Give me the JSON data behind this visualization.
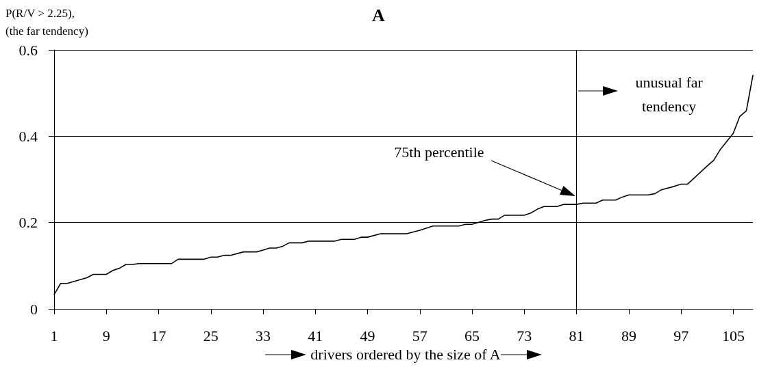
{
  "chart_data": {
    "type": "line",
    "title": "A",
    "xlabel": "drivers ordered by the size of A",
    "ylabel": "P(R/V > 2.25),\n(the far tendency)",
    "xlim": [
      1,
      108
    ],
    "xticks": [
      1,
      9,
      17,
      25,
      33,
      41,
      49,
      57,
      65,
      73,
      81,
      89,
      97,
      105
    ],
    "ylim": [
      0,
      0.6
    ],
    "yticks": [
      0,
      0.2,
      0.4,
      0.6
    ],
    "grid": "y",
    "marker": "none",
    "line_style": "solid",
    "series": [
      {
        "color": "#000000",
        "x": [
          1,
          2,
          3,
          6,
          7,
          9,
          10,
          11,
          12,
          13,
          14,
          19,
          20,
          24,
          25,
          26,
          27,
          28,
          30,
          32,
          33,
          34,
          35,
          36,
          37,
          39,
          40,
          44,
          45,
          47,
          48,
          49,
          51,
          55,
          57,
          59,
          63,
          64,
          65,
          67,
          68,
          69,
          70,
          73,
          74,
          75,
          76,
          78,
          79,
          81,
          82,
          84,
          85,
          87,
          88,
          89,
          92,
          93,
          94,
          96,
          97,
          98,
          99,
          101,
          102,
          103,
          105,
          106,
          107,
          108
        ],
        "values": [
          0.033,
          0.059,
          0.059,
          0.072,
          0.08,
          0.08,
          0.089,
          0.094,
          0.103,
          0.103,
          0.105,
          0.105,
          0.115,
          0.115,
          0.12,
          0.12,
          0.124,
          0.124,
          0.132,
          0.132,
          0.136,
          0.141,
          0.141,
          0.145,
          0.153,
          0.153,
          0.157,
          0.157,
          0.161,
          0.161,
          0.166,
          0.166,
          0.174,
          0.174,
          0.182,
          0.192,
          0.192,
          0.196,
          0.196,
          0.205,
          0.208,
          0.208,
          0.217,
          0.217,
          0.222,
          0.231,
          0.237,
          0.237,
          0.242,
          0.242,
          0.245,
          0.245,
          0.252,
          0.252,
          0.259,
          0.264,
          0.264,
          0.267,
          0.276,
          0.284,
          0.289,
          0.289,
          0.303,
          0.331,
          0.344,
          0.369,
          0.407,
          0.446,
          0.459,
          0.541
        ]
      }
    ],
    "ref_lines": [
      {
        "axis": "x",
        "value": 81,
        "color": "#000000"
      }
    ],
    "annotations": [
      "75th percentile",
      "unusual far\ntendency"
    ]
  }
}
